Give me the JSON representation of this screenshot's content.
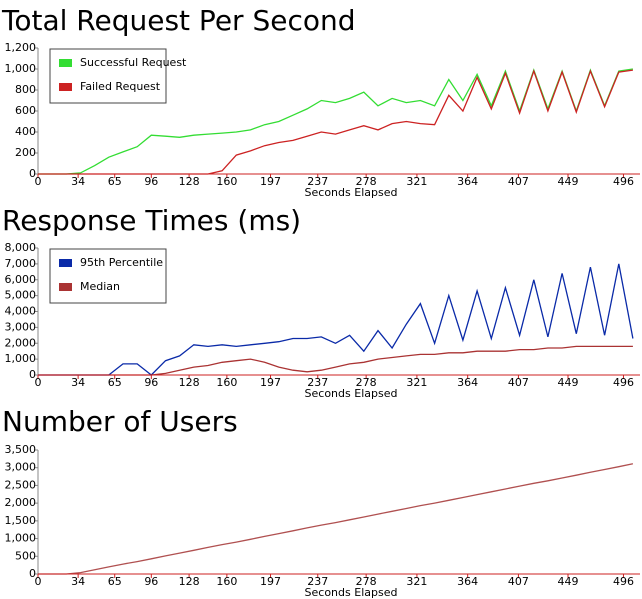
{
  "chart_data": [
    {
      "type": "line",
      "title": "Total Request Per Second",
      "x_label": "Seconds Elapsed",
      "x": [
        0,
        12,
        24,
        36,
        48,
        60,
        72,
        84,
        96,
        108,
        120,
        132,
        144,
        156,
        168,
        180,
        192,
        204,
        216,
        228,
        240,
        252,
        264,
        276,
        288,
        300,
        312,
        324,
        336,
        348,
        360,
        372,
        384,
        396,
        408,
        420,
        432,
        444,
        456,
        468,
        480,
        492,
        504
      ],
      "xlim": [
        0,
        510
      ],
      "xticks": [
        0,
        34,
        65,
        96,
        128,
        160,
        197,
        237,
        278,
        321,
        364,
        407,
        449,
        496
      ],
      "ylim": [
        0,
        1200
      ],
      "yticks": [
        0,
        200,
        400,
        600,
        800,
        {
          "value": 1000,
          "label": "1,000"
        },
        {
          "value": 1200,
          "label": "1,200"
        }
      ],
      "legend": "upper left",
      "series": [
        {
          "name": "Successful Request",
          "color": "#33dd33",
          "values": [
            0,
            0,
            0,
            10,
            80,
            160,
            210,
            260,
            370,
            360,
            350,
            370,
            380,
            390,
            400,
            420,
            470,
            500,
            560,
            620,
            700,
            680,
            720,
            780,
            650,
            720,
            680,
            700,
            650,
            900,
            700,
            950,
            650,
            980,
            600,
            990,
            620,
            980,
            600,
            990,
            650,
            980,
            1000
          ]
        },
        {
          "name": "Failed Request",
          "color": "#cc2222",
          "values": [
            0,
            0,
            0,
            0,
            0,
            0,
            0,
            0,
            0,
            0,
            0,
            0,
            0,
            30,
            180,
            220,
            270,
            300,
            320,
            360,
            400,
            380,
            420,
            460,
            420,
            480,
            500,
            480,
            470,
            750,
            600,
            920,
            620,
            960,
            580,
            980,
            600,
            970,
            590,
            980,
            640,
            970,
            990
          ]
        }
      ]
    },
    {
      "type": "line",
      "title": "Response Times (ms)",
      "x_label": "Seconds Elapsed",
      "x": [
        0,
        12,
        24,
        36,
        48,
        60,
        72,
        84,
        96,
        108,
        120,
        132,
        144,
        156,
        168,
        180,
        192,
        204,
        216,
        228,
        240,
        252,
        264,
        276,
        288,
        300,
        312,
        324,
        336,
        348,
        360,
        372,
        384,
        396,
        408,
        420,
        432,
        444,
        456,
        468,
        480,
        492,
        504
      ],
      "xlim": [
        0,
        510
      ],
      "xticks": [
        0,
        34,
        65,
        96,
        128,
        160,
        197,
        237,
        278,
        321,
        364,
        407,
        449,
        496
      ],
      "ylim": [
        0,
        8000
      ],
      "yticks": [
        0,
        {
          "value": 1000,
          "label": "1,000"
        },
        {
          "value": 2000,
          "label": "2,000"
        },
        {
          "value": 3000,
          "label": "3,000"
        },
        {
          "value": 4000,
          "label": "4,000"
        },
        {
          "value": 5000,
          "label": "5,000"
        },
        {
          "value": 6000,
          "label": "6,000"
        },
        {
          "value": 7000,
          "label": "7,000"
        },
        {
          "value": 8000,
          "label": "8,000"
        }
      ],
      "legend": "upper left",
      "series": [
        {
          "name": "95th Percentile",
          "color": "#0a2aa8",
          "values": [
            0,
            0,
            0,
            0,
            0,
            0,
            700,
            700,
            0,
            900,
            1200,
            1900,
            1800,
            1900,
            1800,
            1900,
            2000,
            2100,
            2300,
            2300,
            2400,
            2000,
            2500,
            1500,
            2800,
            1700,
            3200,
            4500,
            2000,
            5000,
            2200,
            5300,
            2300,
            5500,
            2500,
            6000,
            2400,
            6400,
            2600,
            6800,
            2500,
            7000,
            2300
          ]
        },
        {
          "name": "Median",
          "color": "#aa3333",
          "values": [
            0,
            0,
            0,
            0,
            0,
            0,
            0,
            0,
            0,
            100,
            300,
            500,
            600,
            800,
            900,
            1000,
            800,
            500,
            300,
            200,
            300,
            500,
            700,
            800,
            1000,
            1100,
            1200,
            1300,
            1300,
            1400,
            1400,
            1500,
            1500,
            1500,
            1600,
            1600,
            1700,
            1700,
            1800,
            1800,
            1800,
            1800,
            1800
          ]
        }
      ]
    },
    {
      "type": "line",
      "title": "Number of Users",
      "x_label": "Seconds Elapsed",
      "x": [
        0,
        12,
        24,
        36,
        48,
        60,
        72,
        84,
        96,
        108,
        120,
        132,
        144,
        156,
        168,
        180,
        192,
        204,
        216,
        228,
        240,
        252,
        264,
        276,
        288,
        300,
        312,
        324,
        336,
        348,
        360,
        372,
        384,
        396,
        408,
        420,
        432,
        444,
        456,
        468,
        480,
        492,
        504
      ],
      "xlim": [
        0,
        510
      ],
      "xticks": [
        0,
        34,
        65,
        96,
        128,
        160,
        197,
        237,
        278,
        321,
        364,
        407,
        449,
        496
      ],
      "ylim": [
        0,
        3500
      ],
      "yticks": [
        0,
        500,
        {
          "value": 1000,
          "label": "1,000"
        },
        {
          "value": 1500,
          "label": "1,500"
        },
        {
          "value": 2000,
          "label": "2,000"
        },
        {
          "value": 2500,
          "label": "2,500"
        },
        {
          "value": 3000,
          "label": "3,000"
        },
        {
          "value": 3500,
          "label": "3,500"
        }
      ],
      "series": [
        {
          "color": "#b05050",
          "values": [
            0,
            0,
            0,
            40,
            120,
            200,
            280,
            350,
            430,
            510,
            590,
            670,
            750,
            830,
            900,
            980,
            1060,
            1140,
            1220,
            1300,
            1380,
            1450,
            1530,
            1610,
            1690,
            1770,
            1850,
            1930,
            2000,
            2080,
            2160,
            2240,
            2320,
            2400,
            2480,
            2560,
            2630,
            2710,
            2790,
            2870,
            2950,
            3030,
            3110
          ]
        }
      ]
    }
  ]
}
